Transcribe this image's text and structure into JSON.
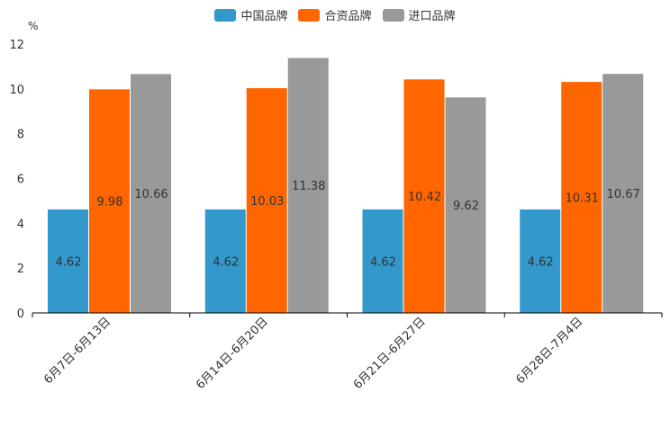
{
  "chart_data": {
    "type": "bar",
    "y_unit": "%",
    "categories": [
      "6月7日-6月13日",
      "6月14日-6月20日",
      "6月21日-6月27日",
      "6月28日-7月4日"
    ],
    "series": [
      {
        "name": "中国品牌",
        "color": "#3399cc",
        "values": [
          4.62,
          4.62,
          4.62,
          4.62
        ]
      },
      {
        "name": "合资品牌",
        "color": "#ff6600",
        "values": [
          9.98,
          10.03,
          10.42,
          10.31
        ]
      },
      {
        "name": "进口品牌",
        "color": "#999999",
        "values": [
          10.66,
          11.38,
          9.62,
          10.67
        ]
      }
    ],
    "data_labels": [
      [
        "4.62",
        "4.62",
        "4.62",
        "4.62"
      ],
      [
        "9.98",
        "10.03",
        "10.42",
        "10.31"
      ],
      [
        "10.66",
        "11.38",
        "9.62",
        "10.67"
      ]
    ],
    "ylim": [
      0,
      12
    ],
    "yticks": [
      0,
      2,
      4,
      6,
      8,
      10,
      12
    ],
    "ytick_labels": [
      "0",
      "2",
      "4",
      "6",
      "8",
      "10",
      "12"
    ],
    "legend_position": "top-center",
    "grid": false
  }
}
